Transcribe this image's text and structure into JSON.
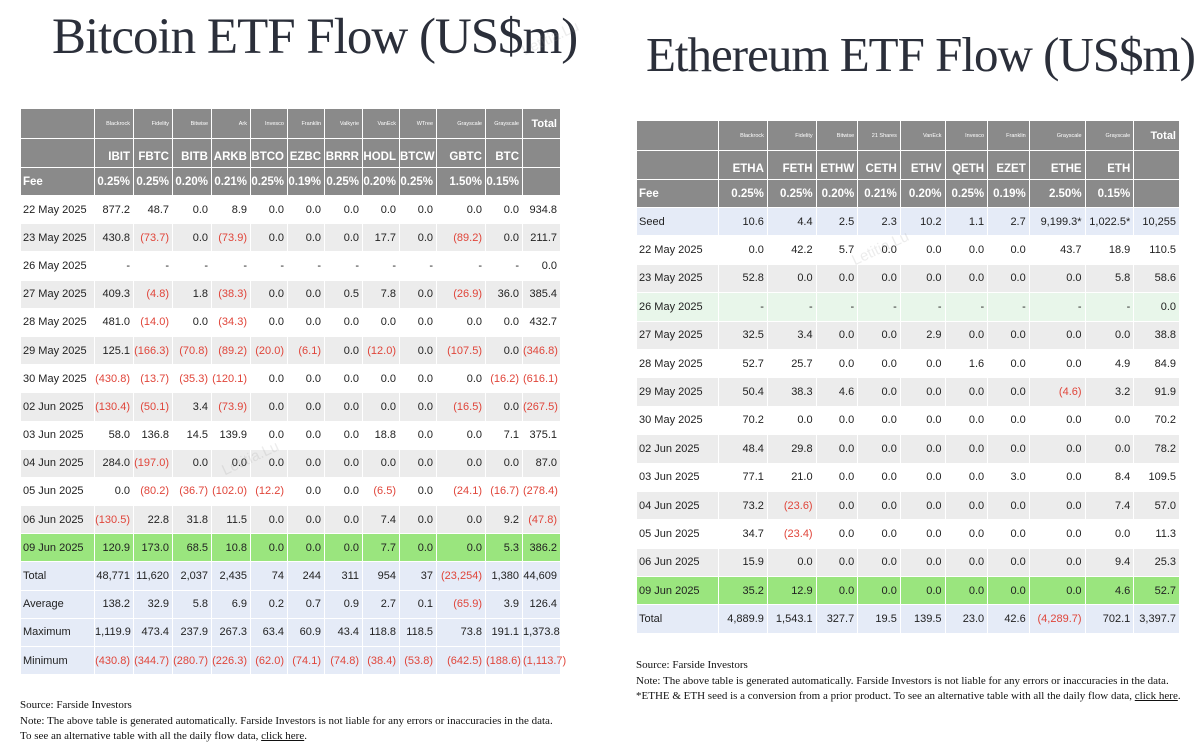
{
  "watermark": "Letitia.Lu",
  "btc": {
    "title": "Bitcoin ETF Flow (US$m)",
    "issuers": [
      "Blackrock",
      "Fidelity",
      "Bitwise",
      "Ark",
      "Invesco",
      "Franklin",
      "Valkyrie",
      "VanEck",
      "WTree",
      "Grayscale",
      "Grayscale"
    ],
    "tickers": [
      "IBIT",
      "FBTC",
      "BITB",
      "ARKB",
      "BTCO",
      "EZBC",
      "BRRR",
      "HODL",
      "BTCW",
      "GBTC",
      "BTC"
    ],
    "total_header": "Total",
    "fee_label": "Fee",
    "fees": [
      "0.25%",
      "0.25%",
      "0.20%",
      "0.21%",
      "0.25%",
      "0.19%",
      "0.25%",
      "0.20%",
      "0.25%",
      "1.50%",
      "0.15%"
    ],
    "rows": [
      {
        "date": "22 May 2025",
        "values": [
          "877.2",
          "48.7",
          "0.0",
          "8.9",
          "0.0",
          "0.0",
          "0.0",
          "0.0",
          "0.0",
          "0.0",
          "0.0",
          "934.8"
        ]
      },
      {
        "date": "23 May 2025",
        "values": [
          "430.8",
          "(73.7)",
          "0.0",
          "(73.9)",
          "0.0",
          "0.0",
          "0.0",
          "17.7",
          "0.0",
          "(89.2)",
          "0.0",
          "211.7"
        ]
      },
      {
        "date": "26 May 2025",
        "values": [
          "-",
          "-",
          "-",
          "-",
          "-",
          "-",
          "-",
          "-",
          "-",
          "-",
          "-",
          "0.0"
        ]
      },
      {
        "date": "27 May 2025",
        "values": [
          "409.3",
          "(4.8)",
          "1.8",
          "(38.3)",
          "0.0",
          "0.0",
          "0.5",
          "7.8",
          "0.0",
          "(26.9)",
          "36.0",
          "385.4"
        ]
      },
      {
        "date": "28 May 2025",
        "values": [
          "481.0",
          "(14.0)",
          "0.0",
          "(34.3)",
          "0.0",
          "0.0",
          "0.0",
          "0.0",
          "0.0",
          "0.0",
          "0.0",
          "432.7"
        ]
      },
      {
        "date": "29 May 2025",
        "values": [
          "125.1",
          "(166.3)",
          "(70.8)",
          "(89.2)",
          "(20.0)",
          "(6.1)",
          "0.0",
          "(12.0)",
          "0.0",
          "(107.5)",
          "0.0",
          "(346.8)"
        ]
      },
      {
        "date": "30 May 2025",
        "values": [
          "(430.8)",
          "(13.7)",
          "(35.3)",
          "(120.1)",
          "0.0",
          "0.0",
          "0.0",
          "0.0",
          "0.0",
          "0.0",
          "(16.2)",
          "(616.1)"
        ]
      },
      {
        "date": "02 Jun 2025",
        "values": [
          "(130.4)",
          "(50.1)",
          "3.4",
          "(73.9)",
          "0.0",
          "0.0",
          "0.0",
          "0.0",
          "0.0",
          "(16.5)",
          "0.0",
          "(267.5)"
        ]
      },
      {
        "date": "03 Jun 2025",
        "values": [
          "58.0",
          "136.8",
          "14.5",
          "139.9",
          "0.0",
          "0.0",
          "0.0",
          "18.8",
          "0.0",
          "0.0",
          "7.1",
          "375.1"
        ]
      },
      {
        "date": "04 Jun 2025",
        "values": [
          "284.0",
          "(197.0)",
          "0.0",
          "0.0",
          "0.0",
          "0.0",
          "0.0",
          "0.0",
          "0.0",
          "0.0",
          "0.0",
          "87.0"
        ]
      },
      {
        "date": "05 Jun 2025",
        "values": [
          "0.0",
          "(80.2)",
          "(36.7)",
          "(102.0)",
          "(12.2)",
          "0.0",
          "0.0",
          "(6.5)",
          "0.0",
          "(24.1)",
          "(16.7)",
          "(278.4)"
        ]
      },
      {
        "date": "06 Jun 2025",
        "values": [
          "(130.5)",
          "22.8",
          "31.8",
          "11.5",
          "0.0",
          "0.0",
          "0.0",
          "7.4",
          "0.0",
          "0.0",
          "9.2",
          "(47.8)"
        ]
      },
      {
        "date": "09 Jun 2025",
        "values": [
          "120.9",
          "173.0",
          "68.5",
          "10.8",
          "0.0",
          "0.0",
          "0.0",
          "7.7",
          "0.0",
          "0.0",
          "5.3",
          "386.2"
        ],
        "latest": true
      }
    ],
    "summary": [
      {
        "label": "Total",
        "values": [
          "48,771",
          "11,620",
          "2,037",
          "2,435",
          "74",
          "244",
          "311",
          "954",
          "37",
          "(23,254)",
          "1,380",
          "44,609"
        ]
      },
      {
        "label": "Average",
        "values": [
          "138.2",
          "32.9",
          "5.8",
          "6.9",
          "0.2",
          "0.7",
          "0.9",
          "2.7",
          "0.1",
          "(65.9)",
          "3.9",
          "126.4"
        ]
      },
      {
        "label": "Maximum",
        "values": [
          "1,119.9",
          "473.4",
          "237.9",
          "267.3",
          "63.4",
          "60.9",
          "43.4",
          "118.8",
          "118.5",
          "73.8",
          "191.1",
          "1,373.8"
        ]
      },
      {
        "label": "Minimum",
        "values": [
          "(430.8)",
          "(344.7)",
          "(280.7)",
          "(226.3)",
          "(62.0)",
          "(74.1)",
          "(74.8)",
          "(38.4)",
          "(53.8)",
          "(642.5)",
          "(188.6)",
          "(1,113.7)"
        ]
      }
    ],
    "source": "Source: Farside Investors",
    "note": "Note: The above table is generated automatically. Farside Investors is not liable for any errors or inaccuracies in the data. To see an alternative table with all the daily flow data, ",
    "link": "click here",
    "after_link": "."
  },
  "eth": {
    "title": "Ethereum ETF Flow (US$m)",
    "issuers": [
      "Blackrock",
      "Fidelity",
      "Bitwise",
      "21 Shares",
      "VanEck",
      "Invesco",
      "Franklin",
      "Grayscale",
      "Grayscale"
    ],
    "tickers": [
      "ETHA",
      "FETH",
      "ETHW",
      "CETH",
      "ETHV",
      "QETH",
      "EZET",
      "ETHE",
      "ETH"
    ],
    "total_header": "Total",
    "fee_label": "Fee",
    "fees": [
      "0.25%",
      "0.25%",
      "0.20%",
      "0.21%",
      "0.20%",
      "0.25%",
      "0.19%",
      "2.50%",
      "0.15%"
    ],
    "seed": {
      "label": "Seed",
      "values": [
        "10.6",
        "4.4",
        "2.5",
        "2.3",
        "10.2",
        "1.1",
        "2.7",
        "9,199.3*",
        "1,022.5*",
        "10,255"
      ]
    },
    "rows": [
      {
        "date": "22 May 2025",
        "values": [
          "0.0",
          "42.2",
          "5.7",
          "0.0",
          "0.0",
          "0.0",
          "0.0",
          "43.7",
          "18.9",
          "110.5"
        ]
      },
      {
        "date": "23 May 2025",
        "values": [
          "52.8",
          "0.0",
          "0.0",
          "0.0",
          "0.0",
          "0.0",
          "0.0",
          "0.0",
          "5.8",
          "58.6"
        ]
      },
      {
        "date": "26 May 2025",
        "values": [
          "-",
          "-",
          "-",
          "-",
          "-",
          "-",
          "-",
          "-",
          "-",
          "0.0"
        ],
        "blank": true
      },
      {
        "date": "27 May 2025",
        "values": [
          "32.5",
          "3.4",
          "0.0",
          "0.0",
          "2.9",
          "0.0",
          "0.0",
          "0.0",
          "0.0",
          "38.8"
        ]
      },
      {
        "date": "28 May 2025",
        "values": [
          "52.7",
          "25.7",
          "0.0",
          "0.0",
          "0.0",
          "1.6",
          "0.0",
          "0.0",
          "4.9",
          "84.9"
        ]
      },
      {
        "date": "29 May 2025",
        "values": [
          "50.4",
          "38.3",
          "4.6",
          "0.0",
          "0.0",
          "0.0",
          "0.0",
          "(4.6)",
          "3.2",
          "91.9"
        ]
      },
      {
        "date": "30 May 2025",
        "values": [
          "70.2",
          "0.0",
          "0.0",
          "0.0",
          "0.0",
          "0.0",
          "0.0",
          "0.0",
          "0.0",
          "70.2"
        ]
      },
      {
        "date": "02 Jun 2025",
        "values": [
          "48.4",
          "29.8",
          "0.0",
          "0.0",
          "0.0",
          "0.0",
          "0.0",
          "0.0",
          "0.0",
          "78.2"
        ]
      },
      {
        "date": "03 Jun 2025",
        "values": [
          "77.1",
          "21.0",
          "0.0",
          "0.0",
          "0.0",
          "0.0",
          "3.0",
          "0.0",
          "8.4",
          "109.5"
        ]
      },
      {
        "date": "04 Jun 2025",
        "values": [
          "73.2",
          "(23.6)",
          "0.0",
          "0.0",
          "0.0",
          "0.0",
          "0.0",
          "0.0",
          "7.4",
          "57.0"
        ]
      },
      {
        "date": "05 Jun 2025",
        "values": [
          "34.7",
          "(23.4)",
          "0.0",
          "0.0",
          "0.0",
          "0.0",
          "0.0",
          "0.0",
          "0.0",
          "11.3"
        ]
      },
      {
        "date": "06 Jun 2025",
        "values": [
          "15.9",
          "0.0",
          "0.0",
          "0.0",
          "0.0",
          "0.0",
          "0.0",
          "0.0",
          "9.4",
          "25.3"
        ]
      },
      {
        "date": "09 Jun 2025",
        "values": [
          "35.2",
          "12.9",
          "0.0",
          "0.0",
          "0.0",
          "0.0",
          "0.0",
          "0.0",
          "4.6",
          "52.7"
        ],
        "latest": true
      }
    ],
    "summary": [
      {
        "label": "Total",
        "values": [
          "4,889.9",
          "1,543.1",
          "327.7",
          "19.5",
          "139.5",
          "23.0",
          "42.6",
          "(4,289.7)",
          "702.1",
          "3,397.7"
        ]
      }
    ],
    "source": "Source: Farside Investors",
    "note": "Note: The above table is generated automatically. Farside Investors is not liable for any errors or inaccuracies in the data. *ETHE & ETH seed is a conversion from a prior product.  To see an alternative table with all the daily flow data, ",
    "link": "click here",
    "after_link": "."
  }
}
